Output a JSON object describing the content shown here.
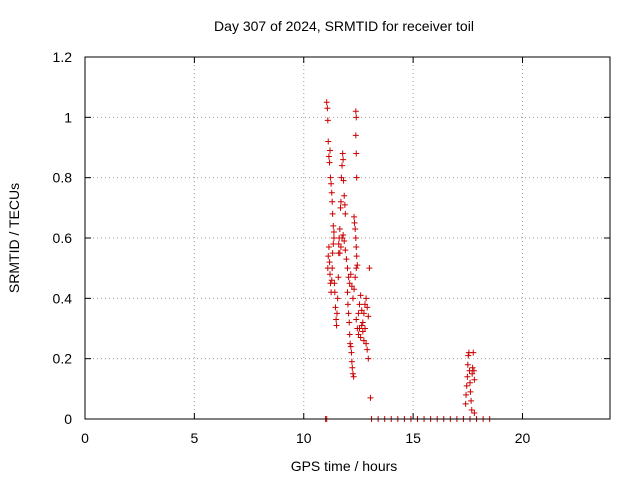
{
  "chart_data": {
    "type": "scatter",
    "title": "Day 307 of 2024, SRMTID for receiver toil",
    "xlabel": "GPS time / hours",
    "ylabel": "SRMTID / TECUs",
    "xlim": [
      0,
      24
    ],
    "ylim": [
      0,
      1.2
    ],
    "xticks": [
      0,
      5,
      10,
      15,
      20
    ],
    "xtick_labels": [
      "0",
      "5",
      "10",
      "15",
      "20"
    ],
    "yticks": [
      0,
      0.2,
      0.4,
      0.6,
      0.8,
      1,
      1.2
    ],
    "ytick_labels": [
      "0",
      "0.2",
      "0.4",
      "0.6",
      "0.8",
      "1",
      "1.2"
    ],
    "grid": true,
    "marker": "+",
    "color": "#cc0000",
    "series": [
      {
        "name": "SRMTID",
        "points": [
          [
            11.0,
            0.0
          ],
          [
            11.05,
            0.0
          ],
          [
            11.05,
            1.05
          ],
          [
            11.08,
            1.03
          ],
          [
            11.1,
            0.99
          ],
          [
            11.12,
            0.92
          ],
          [
            11.15,
            0.87
          ],
          [
            11.18,
            0.85
          ],
          [
            11.2,
            0.89
          ],
          [
            11.22,
            0.8
          ],
          [
            11.25,
            0.78
          ],
          [
            11.28,
            0.75
          ],
          [
            11.3,
            0.72
          ],
          [
            11.32,
            0.68
          ],
          [
            11.35,
            0.64
          ],
          [
            11.38,
            0.62
          ],
          [
            11.1,
            0.5
          ],
          [
            11.12,
            0.54
          ],
          [
            11.15,
            0.57
          ],
          [
            11.18,
            0.52
          ],
          [
            11.2,
            0.48
          ],
          [
            11.22,
            0.45
          ],
          [
            11.25,
            0.42
          ],
          [
            11.28,
            0.46
          ],
          [
            11.3,
            0.5
          ],
          [
            11.32,
            0.55
          ],
          [
            11.35,
            0.58
          ],
          [
            11.38,
            0.6
          ],
          [
            11.4,
            0.45
          ],
          [
            11.42,
            0.42
          ],
          [
            11.45,
            0.37
          ],
          [
            11.48,
            0.33
          ],
          [
            11.5,
            0.31
          ],
          [
            11.52,
            0.35
          ],
          [
            11.55,
            0.4
          ],
          [
            11.58,
            0.47
          ],
          [
            11.6,
            0.55
          ],
          [
            11.62,
            0.6
          ],
          [
            11.65,
            0.63
          ],
          [
            11.68,
            0.7
          ],
          [
            11.7,
            0.72
          ],
          [
            11.72,
            0.8
          ],
          [
            11.75,
            0.84
          ],
          [
            11.78,
            0.88
          ],
          [
            11.8,
            0.86
          ],
          [
            11.82,
            0.79
          ],
          [
            11.85,
            0.74
          ],
          [
            11.88,
            0.71
          ],
          [
            11.9,
            0.68
          ],
          [
            11.6,
            0.58
          ],
          [
            11.65,
            0.55
          ],
          [
            11.7,
            0.57
          ],
          [
            11.75,
            0.6
          ],
          [
            11.8,
            0.61
          ],
          [
            11.85,
            0.59
          ],
          [
            11.9,
            0.56
          ],
          [
            11.95,
            0.53
          ],
          [
            12.0,
            0.5
          ],
          [
            12.05,
            0.47
          ],
          [
            12.0,
            0.42
          ],
          [
            12.02,
            0.38
          ],
          [
            12.05,
            0.35
          ],
          [
            12.08,
            0.32
          ],
          [
            12.1,
            0.28
          ],
          [
            12.12,
            0.25
          ],
          [
            12.15,
            0.24
          ],
          [
            12.18,
            0.22
          ],
          [
            12.2,
            0.19
          ],
          [
            12.22,
            0.17
          ],
          [
            12.25,
            0.15
          ],
          [
            12.28,
            0.14
          ],
          [
            12.1,
            0.45
          ],
          [
            12.15,
            0.48
          ],
          [
            12.2,
            0.44
          ],
          [
            12.25,
            0.4
          ],
          [
            12.3,
            0.43
          ],
          [
            12.35,
            0.47
          ],
          [
            12.4,
            0.5
          ],
          [
            12.3,
            0.67
          ],
          [
            12.32,
            0.65
          ],
          [
            12.35,
            0.63
          ],
          [
            12.38,
            0.6
          ],
          [
            12.4,
            0.57
          ],
          [
            12.42,
            0.54
          ],
          [
            12.45,
            0.51
          ],
          [
            12.38,
            1.02
          ],
          [
            12.4,
            1.0
          ],
          [
            12.38,
            0.94
          ],
          [
            12.4,
            0.88
          ],
          [
            12.42,
            0.8
          ],
          [
            12.4,
            0.33
          ],
          [
            12.45,
            0.3
          ],
          [
            12.5,
            0.35
          ],
          [
            12.55,
            0.38
          ],
          [
            12.6,
            0.41
          ],
          [
            12.65,
            0.36
          ],
          [
            12.7,
            0.32
          ],
          [
            12.75,
            0.35
          ],
          [
            12.8,
            0.38
          ],
          [
            12.85,
            0.4
          ],
          [
            12.9,
            0.37
          ],
          [
            12.95,
            0.34
          ],
          [
            12.5,
            0.28
          ],
          [
            12.55,
            0.3
          ],
          [
            12.6,
            0.27
          ],
          [
            12.65,
            0.31
          ],
          [
            12.7,
            0.29
          ],
          [
            12.75,
            0.26
          ],
          [
            12.8,
            0.3
          ],
          [
            12.85,
            0.25
          ],
          [
            12.9,
            0.23
          ],
          [
            12.95,
            0.2
          ],
          [
            13.0,
            0.5
          ],
          [
            13.05,
            0.07
          ],
          [
            13.1,
            0.0
          ],
          [
            13.4,
            0.0
          ],
          [
            13.7,
            0.0
          ],
          [
            14.0,
            0.0
          ],
          [
            14.3,
            0.0
          ],
          [
            14.6,
            0.0
          ],
          [
            14.9,
            0.0
          ],
          [
            15.2,
            0.0
          ],
          [
            15.5,
            0.0
          ],
          [
            15.8,
            0.0
          ],
          [
            16.1,
            0.0
          ],
          [
            16.4,
            0.0
          ],
          [
            16.7,
            0.0
          ],
          [
            17.0,
            0.0
          ],
          [
            17.3,
            0.0
          ],
          [
            17.4,
            0.05
          ],
          [
            17.42,
            0.08
          ],
          [
            17.45,
            0.11
          ],
          [
            17.48,
            0.14
          ],
          [
            17.5,
            0.18
          ],
          [
            17.52,
            0.21
          ],
          [
            17.55,
            0.22
          ],
          [
            17.58,
            0.16
          ],
          [
            17.6,
            0.12
          ],
          [
            17.62,
            0.09
          ],
          [
            17.65,
            0.06
          ],
          [
            17.68,
            0.03
          ],
          [
            17.7,
            0.15
          ],
          [
            17.72,
            0.17
          ],
          [
            17.75,
            0.22
          ],
          [
            17.78,
            0.16
          ],
          [
            17.8,
            0.13
          ],
          [
            17.8,
            0.02
          ],
          [
            17.6,
            0.0
          ],
          [
            17.9,
            0.0
          ],
          [
            18.2,
            0.0
          ],
          [
            18.5,
            0.0
          ]
        ]
      }
    ]
  }
}
